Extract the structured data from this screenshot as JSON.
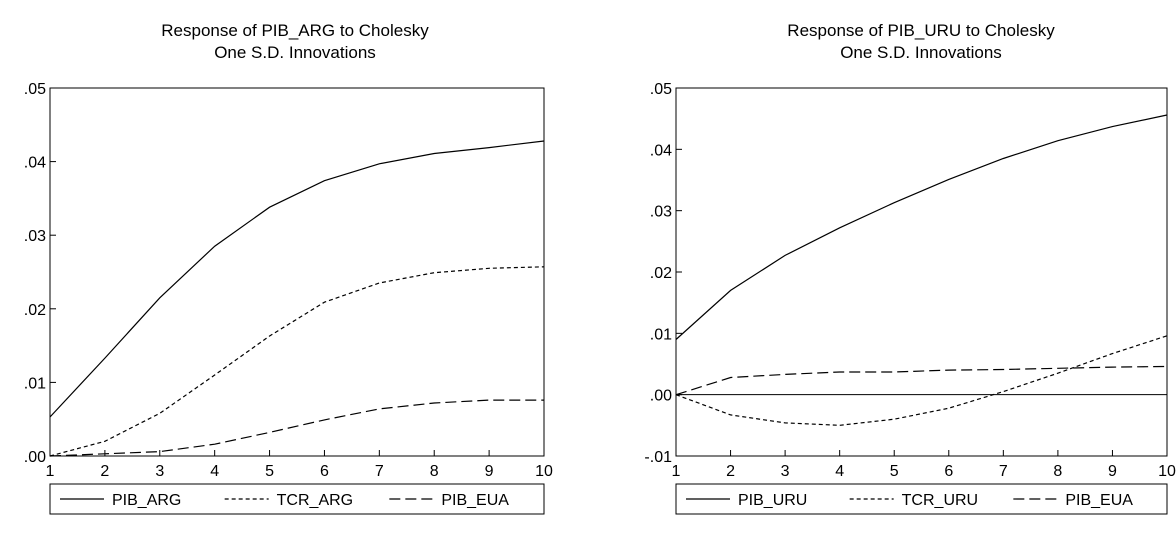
{
  "chart_data": [
    {
      "type": "line",
      "title": "Response of PIB_ARG to Cholesky",
      "subtitle": "One S.D. Innovations",
      "xlabel": "",
      "ylabel": "",
      "x": [
        1,
        2,
        3,
        4,
        5,
        6,
        7,
        8,
        9,
        10
      ],
      "xlim": [
        1,
        10
      ],
      "ylim": [
        0,
        0.05
      ],
      "yticks": [
        0,
        0.01,
        0.02,
        0.03,
        0.04,
        0.05
      ],
      "ytick_labels": [
        ".00",
        ".01",
        ".02",
        ".03",
        ".04",
        ".05"
      ],
      "grid": false,
      "legend_position": "bottom",
      "series": [
        {
          "name": "PIB_ARG",
          "style": "solid",
          "values": [
            0.0053,
            0.0133,
            0.0215,
            0.0285,
            0.0338,
            0.0374,
            0.0397,
            0.0411,
            0.0419,
            0.0428
          ]
        },
        {
          "name": "TCR_ARG",
          "style": "dotted",
          "values": [
            0.0,
            0.002,
            0.0058,
            0.011,
            0.0163,
            0.0209,
            0.0235,
            0.0249,
            0.0255,
            0.0257
          ]
        },
        {
          "name": "PIB_EUA",
          "style": "dashed",
          "values": [
            0.0,
            0.0003,
            0.0006,
            0.0016,
            0.0032,
            0.0049,
            0.0064,
            0.0072,
            0.0076,
            0.0076
          ]
        }
      ]
    },
    {
      "type": "line",
      "title": "Response of PIB_URU to Cholesky",
      "subtitle": "One S.D. Innovations",
      "xlabel": "",
      "ylabel": "",
      "x": [
        1,
        2,
        3,
        4,
        5,
        6,
        7,
        8,
        9,
        10
      ],
      "xlim": [
        1,
        10
      ],
      "ylim": [
        -0.01,
        0.05
      ],
      "yticks": [
        -0.01,
        0,
        0.01,
        0.02,
        0.03,
        0.04,
        0.05
      ],
      "ytick_labels": [
        "-.01",
        ".00",
        ".01",
        ".02",
        ".03",
        ".04",
        ".05"
      ],
      "grid": false,
      "legend_position": "bottom",
      "zero_line": true,
      "series": [
        {
          "name": "PIB_URU",
          "style": "solid",
          "values": [
            0.009,
            0.017,
            0.0227,
            0.0272,
            0.0313,
            0.0351,
            0.0385,
            0.0414,
            0.0437,
            0.0456
          ]
        },
        {
          "name": "TCR_URU",
          "style": "dotted",
          "values": [
            0.0,
            -0.0033,
            -0.0046,
            -0.005,
            -0.004,
            -0.0022,
            0.0005,
            0.0035,
            0.0067,
            0.0096
          ]
        },
        {
          "name": "PIB_EUA",
          "style": "dashed",
          "values": [
            0.0,
            0.0028,
            0.0033,
            0.0037,
            0.0037,
            0.004,
            0.0041,
            0.0043,
            0.0045,
            0.0046
          ]
        }
      ]
    }
  ]
}
